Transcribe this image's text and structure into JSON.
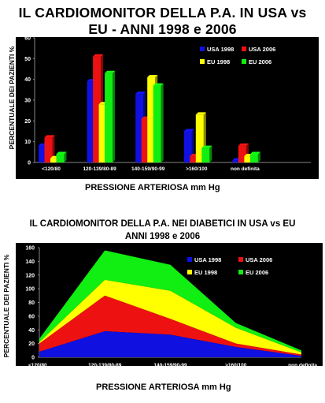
{
  "colors": {
    "usa_1998": "#1010e0",
    "usa_2006": "#ee1111",
    "eu_1998": "#ffff00",
    "eu_2006": "#11ee11",
    "panel_bg": "#000000",
    "text": "#ffffff"
  },
  "chart_data": [
    {
      "type": "bar",
      "title": "IL CARDIOMONITOR DELLA P.A. IN USA vs EU - ANNI 1998 e 2006",
      "xlabel": "PRESSIONE ARTERIOSA mm Hg",
      "ylabel": "PERCENTUALE DEI PAZIENTI %",
      "ylim": [
        0,
        60
      ],
      "yticks": [
        "0",
        "10",
        "20",
        "30",
        "40",
        "50",
        "60"
      ],
      "categories": [
        "<120/80",
        "120-139/80-89",
        "140-159/90-99",
        ">160/100",
        "non definita"
      ],
      "series": [
        {
          "name": "USA 1998",
          "values": [
            8,
            39,
            33,
            15,
            1
          ]
        },
        {
          "name": "USA 2006",
          "values": [
            12,
            51,
            21,
            3,
            8
          ]
        },
        {
          "name": "EU 1998",
          "values": [
            2,
            28,
            41,
            23,
            3
          ]
        },
        {
          "name": "EU 2006",
          "values": [
            4,
            43,
            37,
            7,
            4
          ]
        }
      ],
      "legend": "top-right"
    },
    {
      "type": "area",
      "stacked": true,
      "title": "IL CARDIOMONITOR DEI P.A. NEI DIABETICI IN USA vs EU ANNI 1998 e 2006",
      "xlabel": "PRESSIONE ARTERIOSA mm Hg",
      "ylabel": "PERCENTUALE DEI PAZIENTI %",
      "ylim": [
        0,
        160
      ],
      "yticks": [
        "0",
        "20",
        "40",
        "60",
        "80",
        "100",
        "120",
        "140",
        "160"
      ],
      "categories": [
        "<120/80",
        "120-139/80-89",
        "140-159/90-99",
        ">160/100",
        "non definita"
      ],
      "series": [
        {
          "name": "USA 1998",
          "values": [
            8,
            38,
            33,
            15,
            2
          ]
        },
        {
          "name": "USA 2006",
          "values": [
            12,
            52,
            23,
            5,
            2
          ]
        },
        {
          "name": "EU 1998",
          "values": [
            2,
            23,
            41,
            23,
            3
          ]
        },
        {
          "name": "EU 2006",
          "values": [
            5,
            43,
            38,
            7,
            3
          ]
        }
      ],
      "legend": "top-right"
    }
  ],
  "titles": {
    "top_line1": "IL CARDIOMONITOR DELLA P.A. IN USA vs",
    "top_line2": "EU - ANNI 1998 e 2006",
    "bottom_line1": "IL CARDIOMONITOR DELLA P.A. NEI DIABETICI IN USA vs EU",
    "bottom_line2": "ANNI 1998 e 2006"
  }
}
